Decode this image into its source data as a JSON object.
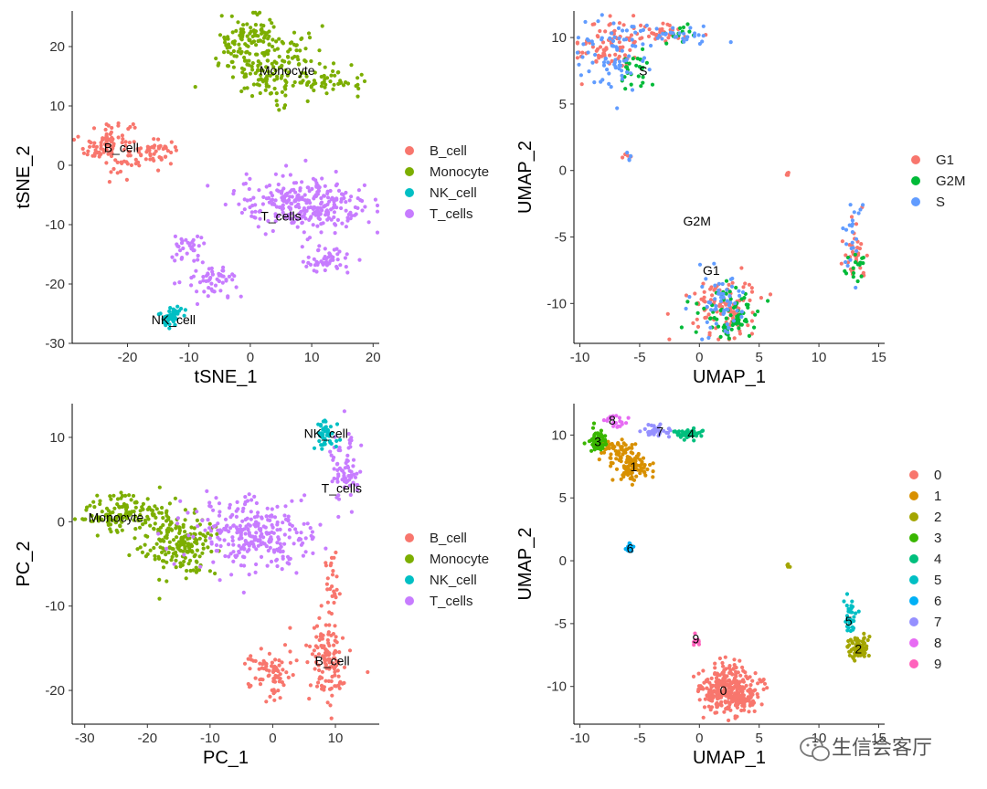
{
  "watermark": {
    "text": "生信会客厅"
  },
  "chart_data": [
    {
      "id": "tsne",
      "type": "scatter",
      "title": "",
      "xlabel": "tSNE_1",
      "ylabel": "tSNE_2",
      "xlim": [
        -29,
        21
      ],
      "ylim": [
        -30,
        26
      ],
      "xticks": [
        -20,
        -10,
        0,
        10,
        20
      ],
      "yticks": [
        -30,
        -20,
        -10,
        0,
        10,
        20
      ],
      "legend": {
        "placement": "right",
        "entries": [
          {
            "label": "B_cell",
            "color": "#F8766D"
          },
          {
            "label": "Monocyte",
            "color": "#7CAE00"
          },
          {
            "label": "NK_cell",
            "color": "#00BFC4"
          },
          {
            "label": "T_cells",
            "color": "#C77CFF"
          }
        ]
      },
      "groups": [
        {
          "name": "B_cell",
          "color": "#F8766D",
          "n": 150,
          "label": "B_cell",
          "label_at": [
            -21,
            3
          ],
          "blobs": [
            {
              "c": [
                -23,
                3.5
              ],
              "s": [
                2.0,
                2.2
              ]
            },
            {
              "c": [
                -16,
                2.2
              ],
              "s": [
                2.2,
                1.0
              ]
            }
          ]
        },
        {
          "name": "Monocyte",
          "color": "#7CAE00",
          "n": 300,
          "label": "Monocyte",
          "label_at": [
            6,
            16
          ],
          "blobs": [
            {
              "c": [
                4,
                17
              ],
              "s": [
                4.5,
                3.0
              ]
            },
            {
              "c": [
                13,
                14
              ],
              "s": [
                3.0,
                0.8
              ]
            },
            {
              "c": [
                0,
                21
              ],
              "s": [
                2.5,
                2.0
              ]
            }
          ]
        },
        {
          "name": "NK_cell",
          "color": "#00BFC4",
          "n": 50,
          "label": "NK_cell",
          "label_at": [
            -12.5,
            -26
          ],
          "blobs": [
            {
              "c": [
                -13,
                -25.5
              ],
              "s": [
                0.9,
                1.0
              ]
            }
          ]
        },
        {
          "name": "T_cells",
          "color": "#C77CFF",
          "n": 420,
          "label": "T_cells",
          "label_at": [
            5,
            -8.5
          ],
          "blobs": [
            {
              "c": [
                9,
                -6.5
              ],
              "s": [
                5.5,
                2.3
              ]
            },
            {
              "c": [
                -10,
                -14
              ],
              "s": [
                1.3,
                1.2
              ]
            },
            {
              "c": [
                -6,
                -19.5
              ],
              "s": [
                2.0,
                1.3
              ]
            },
            {
              "c": [
                12.5,
                -16
              ],
              "s": [
                2.0,
                1.2
              ]
            }
          ]
        }
      ]
    },
    {
      "id": "umap_phase",
      "type": "scatter",
      "title": "",
      "xlabel": "UMAP_1",
      "ylabel": "UMAP_2",
      "xlim": [
        -10.5,
        15.5
      ],
      "ylim": [
        -13,
        12
      ],
      "xticks": [
        -10,
        -5,
        0,
        5,
        10,
        15
      ],
      "yticks": [
        -10,
        -5,
        0,
        5,
        10
      ],
      "legend": {
        "placement": "right",
        "entries": [
          {
            "label": "G1",
            "color": "#F8766D"
          },
          {
            "label": "G2M",
            "color": "#00BA38"
          },
          {
            "label": "S",
            "color": "#619CFF"
          }
        ]
      },
      "cluster_annotations": [
        {
          "label": "S",
          "at": [
            -4.7,
            7.5
          ]
        },
        {
          "label": "G2M",
          "at": [
            -0.2,
            -3.8
          ]
        },
        {
          "label": "G1",
          "at": [
            1.0,
            -7.5
          ]
        }
      ],
      "groups": [
        {
          "name": "G1",
          "color": "#F8766D",
          "n": 260,
          "blobs": [
            {
              "c": [
                -7.5,
                9.5
              ],
              "s": [
                1.3,
                1.0
              ]
            },
            {
              "c": [
                2.0,
                -10.3
              ],
              "s": [
                1.4,
                1.2
              ]
            },
            {
              "c": [
                13.0,
                -6.0
              ],
              "s": [
                0.5,
                1.2
              ]
            },
            {
              "c": [
                -3.5,
                10.3
              ],
              "s": [
                1.5,
                0.4
              ]
            },
            {
              "c": [
                -6.0,
                1.0
              ],
              "s": [
                0.2,
                0.2
              ]
            },
            {
              "c": [
                7.4,
                -0.3
              ],
              "s": [
                0.15,
                0.1
              ]
            }
          ]
        },
        {
          "name": "G2M",
          "color": "#00BA38",
          "n": 130,
          "blobs": [
            {
              "c": [
                2.5,
                -10.8
              ],
              "s": [
                1.3,
                1.0
              ]
            },
            {
              "c": [
                13.2,
                -7.2
              ],
              "s": [
                0.5,
                0.6
              ]
            },
            {
              "c": [
                -5.5,
                7.6
              ],
              "s": [
                0.8,
                0.6
              ]
            },
            {
              "c": [
                -1.5,
                10.3
              ],
              "s": [
                0.8,
                0.3
              ]
            }
          ]
        },
        {
          "name": "S",
          "color": "#619CFF",
          "n": 190,
          "blobs": [
            {
              "c": [
                -7.5,
                8.8
              ],
              "s": [
                1.4,
                1.3
              ]
            },
            {
              "c": [
                -2.5,
                10.2
              ],
              "s": [
                2.0,
                0.4
              ]
            },
            {
              "c": [
                1.5,
                -10.0
              ],
              "s": [
                1.1,
                1.2
              ]
            },
            {
              "c": [
                12.8,
                -5.0
              ],
              "s": [
                0.4,
                1.3
              ]
            },
            {
              "c": [
                -6.0,
                1.1
              ],
              "s": [
                0.2,
                0.2
              ]
            }
          ]
        }
      ]
    },
    {
      "id": "pca",
      "type": "scatter",
      "title": "",
      "xlabel": "PC_1",
      "ylabel": "PC_2",
      "xlim": [
        -32,
        17
      ],
      "ylim": [
        -24,
        14
      ],
      "xticks": [
        -30,
        -20,
        -10,
        0,
        10
      ],
      "yticks": [
        -20,
        -10,
        0,
        10
      ],
      "legend": {
        "placement": "right",
        "entries": [
          {
            "label": "B_cell",
            "color": "#F8766D"
          },
          {
            "label": "Monocyte",
            "color": "#7CAE00"
          },
          {
            "label": "NK_cell",
            "color": "#00BFC4"
          },
          {
            "label": "T_cells",
            "color": "#C77CFF"
          }
        ]
      },
      "groups": [
        {
          "name": "Monocyte",
          "color": "#7CAE00",
          "n": 330,
          "label": "Monocyte",
          "label_at": [
            -25,
            0.5
          ],
          "blobs": [
            {
              "c": [
                -24,
                1.0
              ],
              "s": [
                3.2,
                1.2
              ]
            },
            {
              "c": [
                -15,
                -2.5
              ],
              "s": [
                3.0,
                2.0
              ]
            }
          ]
        },
        {
          "name": "T_cells",
          "color": "#C77CFF",
          "n": 360,
          "label": "T_cells",
          "label_at": [
            11,
            4
          ],
          "blobs": [
            {
              "c": [
                11.5,
                6.0
              ],
              "s": [
                1.2,
                2.2
              ]
            },
            {
              "c": [
                -4,
                -1.5
              ],
              "s": [
                5.0,
                2.0
              ]
            }
          ]
        },
        {
          "name": "NK_cell",
          "color": "#00BFC4",
          "n": 45,
          "label": "NK_cell",
          "label_at": [
            8.5,
            10.5
          ],
          "blobs": [
            {
              "c": [
                8.5,
                10.3
              ],
              "s": [
                0.8,
                0.9
              ]
            }
          ]
        },
        {
          "name": "B_cell",
          "color": "#F8766D",
          "n": 220,
          "label": "B_cell",
          "label_at": [
            9.5,
            -16.5
          ],
          "blobs": [
            {
              "c": [
                9.0,
                -16.5
              ],
              "s": [
                1.5,
                3.2
              ]
            },
            {
              "c": [
                9.5,
                -7.0
              ],
              "s": [
                0.5,
                1.8
              ]
            },
            {
              "c": [
                0,
                -17.5
              ],
              "s": [
                2.0,
                1.5
              ]
            }
          ]
        }
      ]
    },
    {
      "id": "umap_clusters",
      "type": "scatter",
      "title": "",
      "xlabel": "UMAP_1",
      "ylabel": "UMAP_2",
      "xlim": [
        -10.5,
        15.5
      ],
      "ylim": [
        -13,
        12.5
      ],
      "xticks": [
        -10,
        -5,
        0,
        5,
        10,
        15
      ],
      "yticks": [
        -10,
        -5,
        0,
        5,
        10
      ],
      "legend": {
        "placement": "right",
        "entries": [
          {
            "label": "0",
            "color": "#F8766D"
          },
          {
            "label": "1",
            "color": "#D89000"
          },
          {
            "label": "2",
            "color": "#A3A500"
          },
          {
            "label": "3",
            "color": "#39B600"
          },
          {
            "label": "4",
            "color": "#00BF7D"
          },
          {
            "label": "5",
            "color": "#00BFC4"
          },
          {
            "label": "6",
            "color": "#00B0F6"
          },
          {
            "label": "7",
            "color": "#9590FF"
          },
          {
            "label": "8",
            "color": "#E76BF3"
          },
          {
            "label": "9",
            "color": "#FF62BC"
          }
        ]
      },
      "groups": [
        {
          "name": "0",
          "color": "#F8766D",
          "n": 340,
          "label": "0",
          "label_at": [
            2,
            -10.3
          ],
          "blobs": [
            {
              "c": [
                2.3,
                -10.2
              ],
              "s": [
                1.2,
                1.0
              ]
            },
            {
              "c": [
                3.5,
                -11.0
              ],
              "s": [
                0.6,
                0.5
              ]
            }
          ]
        },
        {
          "name": "1",
          "color": "#D89000",
          "n": 150,
          "label": "1",
          "label_at": [
            -5.5,
            7.5
          ],
          "blobs": [
            {
              "c": [
                -5.5,
                7.4
              ],
              "s": [
                0.8,
                0.5
              ]
            },
            {
              "c": [
                -7.0,
                8.8
              ],
              "s": [
                0.7,
                0.4
              ]
            }
          ]
        },
        {
          "name": "2",
          "color": "#A3A500",
          "n": 90,
          "label": "2",
          "label_at": [
            13.3,
            -7.0
          ],
          "blobs": [
            {
              "c": [
                13.3,
                -7.0
              ],
              "s": [
                0.4,
                0.45
              ]
            },
            {
              "c": [
                7.5,
                -0.4
              ],
              "s": [
                0.1,
                0.08
              ]
            }
          ]
        },
        {
          "name": "3",
          "color": "#39B600",
          "n": 80,
          "label": "3",
          "label_at": [
            -8.5,
            9.5
          ],
          "blobs": [
            {
              "c": [
                -8.5,
                9.5
              ],
              "s": [
                0.35,
                0.45
              ]
            }
          ]
        },
        {
          "name": "4",
          "color": "#00BF7D",
          "n": 50,
          "label": "4",
          "label_at": [
            -0.7,
            10.1
          ],
          "blobs": [
            {
              "c": [
                -1.0,
                10.1
              ],
              "s": [
                0.6,
                0.2
              ]
            }
          ]
        },
        {
          "name": "5",
          "color": "#00BFC4",
          "n": 35,
          "label": "5",
          "label_at": [
            12.5,
            -4.8
          ],
          "blobs": [
            {
              "c": [
                12.5,
                -4.5
              ],
              "s": [
                0.3,
                0.7
              ]
            }
          ]
        },
        {
          "name": "6",
          "color": "#00B0F6",
          "n": 25,
          "label": "6",
          "label_at": [
            -5.8,
            1.0
          ],
          "blobs": [
            {
              "c": [
                -5.8,
                1.0
              ],
              "s": [
                0.18,
                0.2
              ]
            }
          ]
        },
        {
          "name": "7",
          "color": "#9590FF",
          "n": 35,
          "label": "7",
          "label_at": [
            -3.3,
            10.3
          ],
          "blobs": [
            {
              "c": [
                -3.5,
                10.3
              ],
              "s": [
                0.7,
                0.25
              ]
            }
          ]
        },
        {
          "name": "8",
          "color": "#E76BF3",
          "n": 20,
          "label": "8",
          "label_at": [
            -7.3,
            11.2
          ],
          "blobs": [
            {
              "c": [
                -7.0,
                11.0
              ],
              "s": [
                0.5,
                0.3
              ]
            }
          ]
        },
        {
          "name": "9",
          "color": "#FF62BC",
          "n": 10,
          "label": "9",
          "label_at": [
            -0.3,
            -6.2
          ],
          "blobs": [
            {
              "c": [
                -0.2,
                -6.8
              ],
              "s": [
                0.2,
                0.5
              ]
            }
          ]
        }
      ]
    }
  ]
}
